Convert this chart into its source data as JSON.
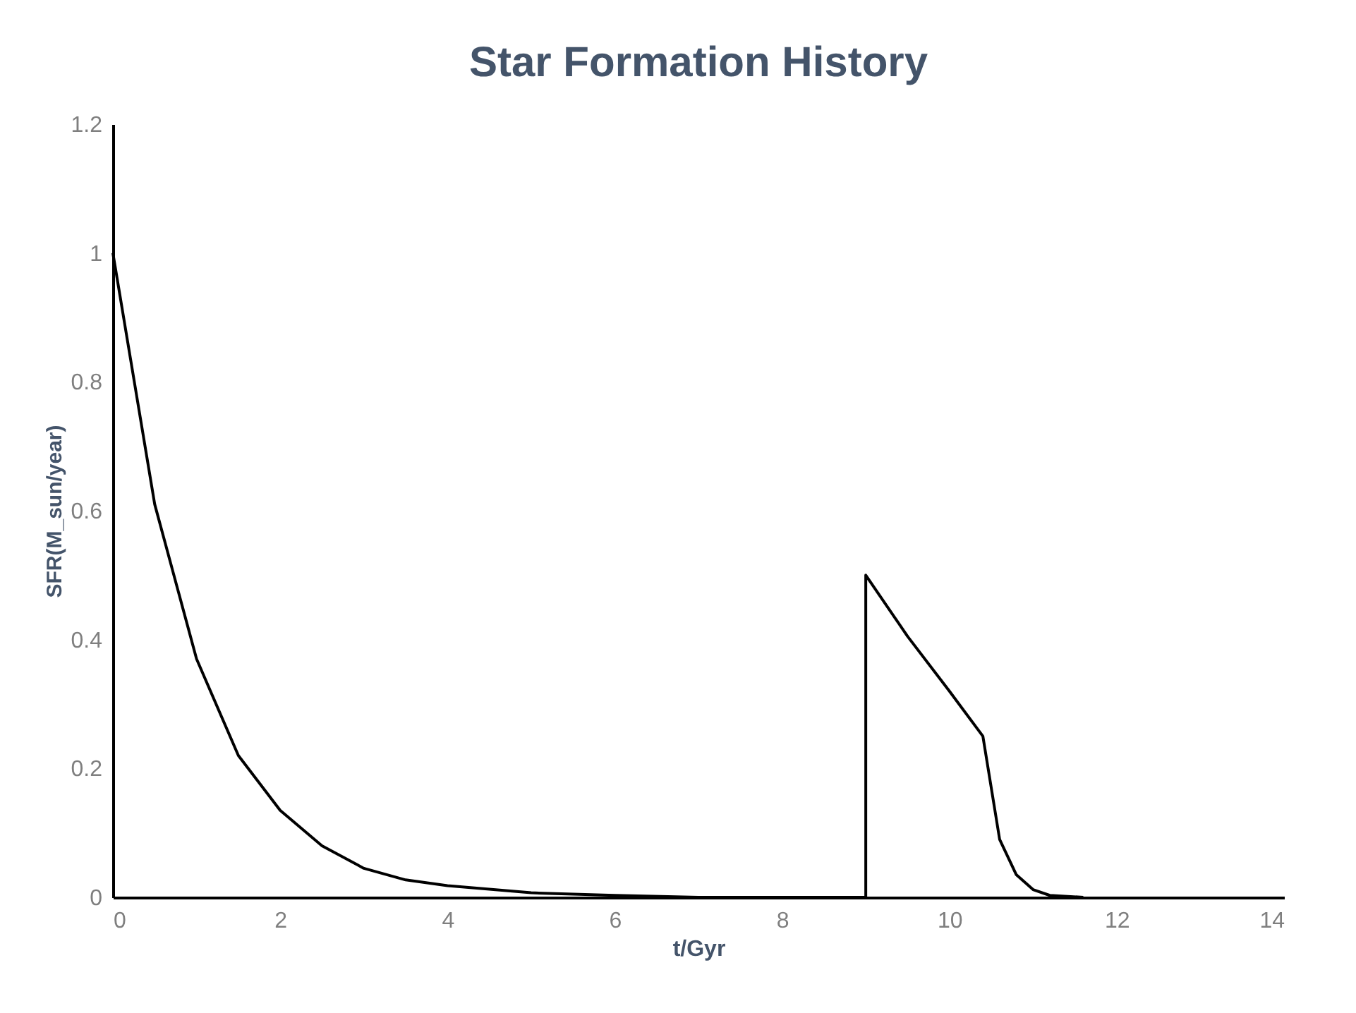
{
  "chart_data": {
    "type": "line",
    "title": "Star Formation History",
    "xlabel": "t/Gyr",
    "ylabel": "SFR(M_sun/year)",
    "x": [
      0,
      0.5,
      1,
      1.5,
      2,
      2.5,
      3,
      3.5,
      4,
      5,
      6,
      7,
      9,
      9,
      9.5,
      10,
      10.4,
      10.6,
      10.8,
      11,
      11.2,
      11.6
    ],
    "series": [
      {
        "color": "#000000",
        "values": [
          1.0,
          0.61,
          0.37,
          0.22,
          0.135,
          0.08,
          0.045,
          0.027,
          0.018,
          0.007,
          0.003,
          0,
          0,
          0.5,
          0.405,
          0.32,
          0.25,
          0.09,
          0.035,
          0.012,
          0.003,
          0
        ]
      }
    ],
    "xlim": [
      0,
      14
    ],
    "xticks": [
      0,
      2,
      4,
      6,
      8,
      10,
      12,
      14
    ],
    "ylim": [
      0,
      1.2
    ],
    "yticks": [
      0,
      0.2,
      0.4,
      0.6,
      0.8,
      1,
      1.2
    ],
    "grid": false,
    "marker": "none",
    "line_style": "solid"
  }
}
